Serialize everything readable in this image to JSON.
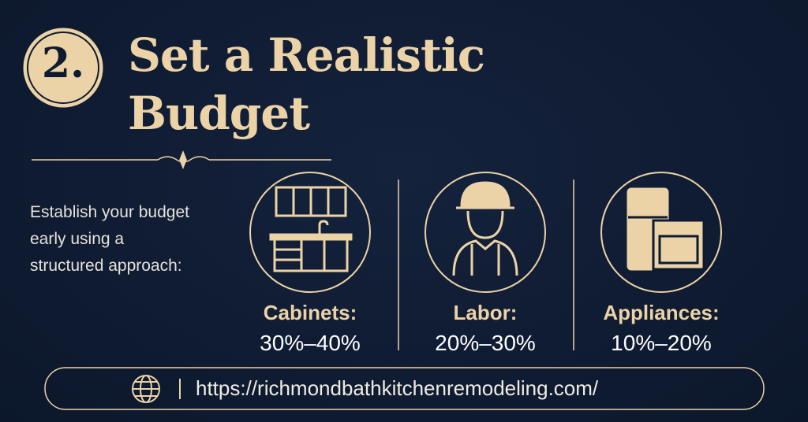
{
  "header": {
    "number": "2.",
    "title_lines": [
      "Set a Realistic",
      "Budget"
    ]
  },
  "intro_lines": [
    "Establish your budget",
    "early using a",
    "structured approach:"
  ],
  "items": [
    {
      "label": "Cabinets:",
      "range": "30%–40%"
    },
    {
      "label": "Labor:",
      "range": "20%–30%"
    },
    {
      "label": "Appliances:",
      "range": "10%–20%"
    }
  ],
  "footer": {
    "url": "https://richmondbathkitchenremodeling.com/"
  }
}
